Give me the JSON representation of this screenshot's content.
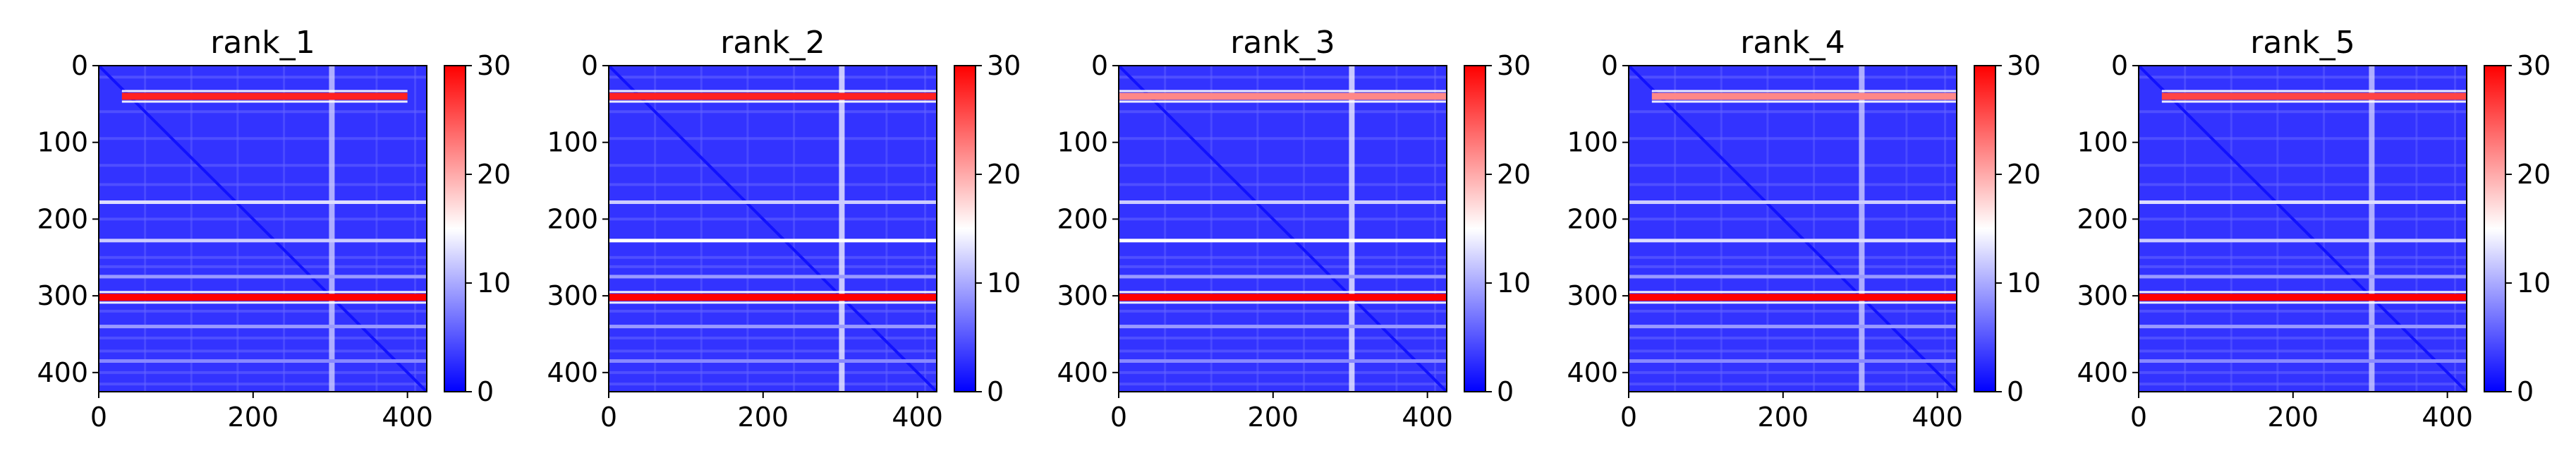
{
  "chart_data": [
    {
      "type": "heatmap",
      "title": "rank_1",
      "xlim": [
        0,
        425
      ],
      "ylim": [
        425,
        0
      ],
      "x_ticks": [
        0,
        200,
        400
      ],
      "y_ticks": [
        0,
        100,
        200,
        300,
        400
      ],
      "colorbar": {
        "min": 0,
        "max": 30,
        "ticks": [
          0,
          10,
          20,
          30
        ],
        "colormap": "bwr"
      },
      "bright_rows": [
        {
          "y": 40,
          "value": 28,
          "x_from": 30,
          "x_to": 400
        },
        {
          "y": 178,
          "value": 13,
          "x_from": 0,
          "x_to": 425
        },
        {
          "y": 228,
          "value": 12,
          "x_from": 0,
          "x_to": 425
        },
        {
          "y": 302,
          "value": 30,
          "x_from": 0,
          "x_to": 425
        },
        {
          "y": 275,
          "value": 9,
          "x_from": 0,
          "x_to": 425
        },
        {
          "y": 340,
          "value": 9,
          "x_from": 0,
          "x_to": 425
        },
        {
          "y": 385,
          "value": 8,
          "x_from": 0,
          "x_to": 425
        }
      ],
      "bright_cols": [
        {
          "x": 302,
          "value": 12
        }
      ],
      "diagonal_value": 1
    },
    {
      "type": "heatmap",
      "title": "rank_2",
      "xlim": [
        0,
        425
      ],
      "ylim": [
        425,
        0
      ],
      "x_ticks": [
        0,
        200,
        400
      ],
      "y_ticks": [
        0,
        100,
        200,
        300,
        400
      ],
      "colorbar": {
        "min": 0,
        "max": 30,
        "ticks": [
          0,
          10,
          20,
          30
        ],
        "colormap": "bwr"
      },
      "bright_rows": [
        {
          "y": 40,
          "value": 28,
          "x_from": 0,
          "x_to": 425
        },
        {
          "y": 178,
          "value": 12,
          "x_from": 0,
          "x_to": 425
        },
        {
          "y": 228,
          "value": 15,
          "x_from": 0,
          "x_to": 425
        },
        {
          "y": 302,
          "value": 30,
          "x_from": 0,
          "x_to": 425
        },
        {
          "y": 275,
          "value": 9,
          "x_from": 0,
          "x_to": 425
        },
        {
          "y": 340,
          "value": 9,
          "x_from": 0,
          "x_to": 425
        },
        {
          "y": 385,
          "value": 8,
          "x_from": 0,
          "x_to": 425
        }
      ],
      "bright_cols": [
        {
          "x": 302,
          "value": 14
        }
      ],
      "diagonal_value": 1
    },
    {
      "type": "heatmap",
      "title": "rank_3",
      "xlim": [
        0,
        425
      ],
      "ylim": [
        425,
        0
      ],
      "x_ticks": [
        0,
        200,
        400
      ],
      "y_ticks": [
        0,
        100,
        200,
        300,
        400
      ],
      "colorbar": {
        "min": 0,
        "max": 30,
        "ticks": [
          0,
          10,
          20,
          30
        ],
        "colormap": "bwr"
      },
      "bright_rows": [
        {
          "y": 40,
          "value": 22,
          "x_from": 0,
          "x_to": 425
        },
        {
          "y": 178,
          "value": 12,
          "x_from": 0,
          "x_to": 425
        },
        {
          "y": 228,
          "value": 15,
          "x_from": 0,
          "x_to": 425
        },
        {
          "y": 302,
          "value": 30,
          "x_from": 0,
          "x_to": 425
        },
        {
          "y": 275,
          "value": 9,
          "x_from": 0,
          "x_to": 425
        },
        {
          "y": 340,
          "value": 9,
          "x_from": 0,
          "x_to": 425
        },
        {
          "y": 385,
          "value": 8,
          "x_from": 0,
          "x_to": 425
        }
      ],
      "bright_cols": [
        {
          "x": 302,
          "value": 14
        }
      ],
      "diagonal_value": 1
    },
    {
      "type": "heatmap",
      "title": "rank_4",
      "xlim": [
        0,
        425
      ],
      "ylim": [
        425,
        0
      ],
      "x_ticks": [
        0,
        200,
        400
      ],
      "y_ticks": [
        0,
        100,
        200,
        300,
        400
      ],
      "colorbar": {
        "min": 0,
        "max": 30,
        "ticks": [
          0,
          10,
          20,
          30
        ],
        "colormap": "bwr"
      },
      "bright_rows": [
        {
          "y": 40,
          "value": 22,
          "x_from": 30,
          "x_to": 425
        },
        {
          "y": 178,
          "value": 12,
          "x_from": 0,
          "x_to": 425
        },
        {
          "y": 228,
          "value": 13,
          "x_from": 0,
          "x_to": 425
        },
        {
          "y": 302,
          "value": 30,
          "x_from": 0,
          "x_to": 425
        },
        {
          "y": 275,
          "value": 9,
          "x_from": 0,
          "x_to": 425
        },
        {
          "y": 340,
          "value": 9,
          "x_from": 0,
          "x_to": 425
        },
        {
          "y": 385,
          "value": 8,
          "x_from": 0,
          "x_to": 425
        }
      ],
      "bright_cols": [
        {
          "x": 302,
          "value": 12
        }
      ],
      "diagonal_value": 1
    },
    {
      "type": "heatmap",
      "title": "rank_5",
      "xlim": [
        0,
        425
      ],
      "ylim": [
        425,
        0
      ],
      "x_ticks": [
        0,
        200,
        400
      ],
      "y_ticks": [
        0,
        100,
        200,
        300,
        400
      ],
      "colorbar": {
        "min": 0,
        "max": 30,
        "ticks": [
          0,
          10,
          20,
          30
        ],
        "colormap": "bwr"
      },
      "bright_rows": [
        {
          "y": 40,
          "value": 26,
          "x_from": 30,
          "x_to": 425
        },
        {
          "y": 178,
          "value": 13,
          "x_from": 0,
          "x_to": 425
        },
        {
          "y": 228,
          "value": 12,
          "x_from": 0,
          "x_to": 425
        },
        {
          "y": 302,
          "value": 30,
          "x_from": 0,
          "x_to": 425
        },
        {
          "y": 275,
          "value": 9,
          "x_from": 0,
          "x_to": 425
        },
        {
          "y": 340,
          "value": 9,
          "x_from": 0,
          "x_to": 425
        },
        {
          "y": 385,
          "value": 8,
          "x_from": 0,
          "x_to": 425
        }
      ],
      "bright_cols": [
        {
          "x": 302,
          "value": 12
        }
      ],
      "diagonal_value": 1
    }
  ]
}
